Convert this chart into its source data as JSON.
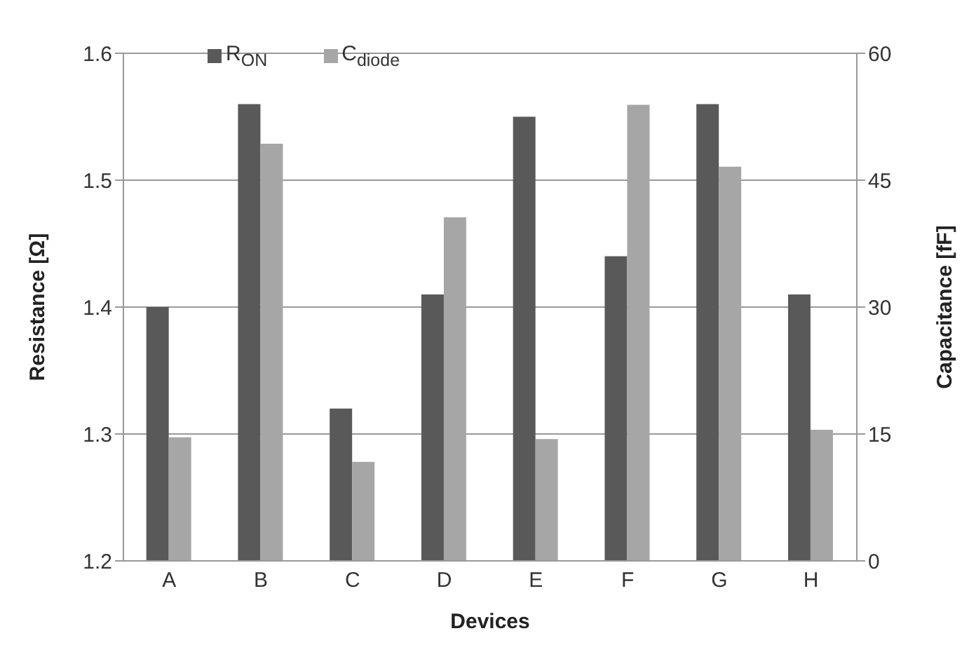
{
  "chart_data": {
    "type": "bar",
    "categories": [
      "A",
      "B",
      "C",
      "D",
      "E",
      "F",
      "G",
      "H"
    ],
    "series": [
      {
        "name": "R$_{ON}$",
        "color": "#595959",
        "values": [
          1.4,
          1.56,
          1.32,
          1.41,
          1.55,
          1.44,
          1.56,
          1.41
        ]
      },
      {
        "name": "C$_{diode}$",
        "color": "#a6a6a6",
        "axis": "y2",
        "values": [
          14.6,
          49.3,
          11.7,
          40.6,
          14.4,
          53.9,
          46.6,
          15.5
        ]
      }
    ],
    "xlabel": "Devices",
    "ylabel": "Resistance [Ω]",
    "y2label": "Capacitance [fF]",
    "ylim": [
      1.2,
      1.6
    ],
    "yticks": [
      1.2,
      1.3,
      1.4,
      1.5,
      1.6
    ],
    "y2lim": [
      0,
      60
    ],
    "y2ticks": [
      0,
      15,
      30,
      45,
      60
    ],
    "grid": "y",
    "legend": "top"
  }
}
